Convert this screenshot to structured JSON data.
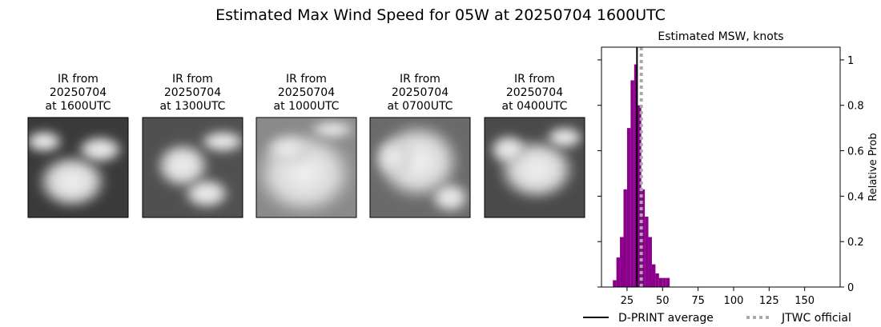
{
  "title": "Estimated Max Wind Speed for 05W at 20250704 1600UTC",
  "panels": [
    {
      "lines": [
        "IR from",
        "20250704",
        "at 1600UTC"
      ]
    },
    {
      "lines": [
        "IR from",
        "20250704",
        "at 1300UTC"
      ]
    },
    {
      "lines": [
        "IR from",
        "20250704",
        "at 1000UTC"
      ]
    },
    {
      "lines": [
        "IR from",
        "20250704",
        "at 0700UTC"
      ]
    },
    {
      "lines": [
        "IR from",
        "20250704",
        "at 0400UTC"
      ]
    }
  ],
  "chart_data": {
    "type": "histogram",
    "title": "Estimated MSW, knots",
    "y_label": "Relative Prob",
    "bins": [
      15,
      17.5,
      20,
      22.5,
      25,
      27.5,
      30,
      32.5,
      35,
      37.5,
      40,
      42.5,
      45,
      47.5,
      50,
      52.5,
      55
    ],
    "values": [
      0.03,
      0.13,
      0.22,
      0.43,
      0.7,
      0.91,
      0.98,
      0.8,
      0.43,
      0.31,
      0.22,
      0.1,
      0.06,
      0.04,
      0.04,
      0.04
    ],
    "color": "#8b008b",
    "xlim": [
      7,
      175
    ],
    "xticks": [
      25,
      50,
      75,
      100,
      125,
      150
    ],
    "ylim": [
      0,
      1.056
    ],
    "yticks": [
      0,
      0.2,
      0.4,
      0.6,
      0.8,
      1.0
    ],
    "reference_lines": [
      {
        "name": "D-PRINT average",
        "value": 32,
        "color": "#000000",
        "style": "solid"
      },
      {
        "name": "JTWC official",
        "value": 35,
        "color": "#aaaaaa",
        "style": "dotted"
      }
    ]
  }
}
